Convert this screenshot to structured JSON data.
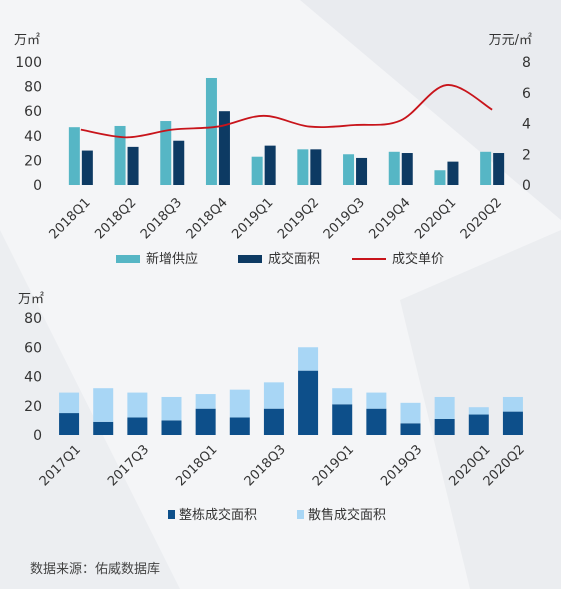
{
  "source": "数据来源：佑威数据库",
  "colors": {
    "supply": "#56b6c5",
    "transaction": "#0d3a63",
    "price": "#c8141b",
    "whole": "#0d4f8a",
    "strata": "#a8d6f5"
  },
  "chart_data": [
    {
      "type": "bar",
      "ylabel_left": "万㎡",
      "ylabel_right": "万元/㎡",
      "ylim": [
        0,
        100
      ],
      "ylim_right": [
        0,
        8
      ],
      "yticks": [
        "0",
        "20",
        "40",
        "60",
        "80",
        "100"
      ],
      "yticks_right": [
        "0",
        "2",
        "4",
        "6",
        "8"
      ],
      "categories": [
        "2018Q1",
        "2018Q2",
        "2018Q3",
        "2018Q4",
        "2019Q1",
        "2019Q2",
        "2019Q3",
        "2019Q4",
        "2020Q1",
        "2020Q2"
      ],
      "series": [
        {
          "name": "新增供应",
          "type": "bar",
          "axis": "left",
          "values": [
            47,
            48,
            52,
            87,
            23,
            29,
            25,
            27,
            12,
            27
          ]
        },
        {
          "name": "成交面积",
          "type": "bar",
          "axis": "left",
          "values": [
            28,
            31,
            36,
            60,
            32,
            29,
            22,
            26,
            19,
            26
          ]
        },
        {
          "name": "成交单价",
          "type": "line",
          "axis": "right",
          "values": [
            3.6,
            3.1,
            3.6,
            3.8,
            4.5,
            3.8,
            3.9,
            4.2,
            6.5,
            4.9
          ]
        }
      ]
    },
    {
      "type": "bar",
      "stacked": true,
      "ylabel": "万㎡",
      "ylim": [
        0,
        80
      ],
      "yticks": [
        "0",
        "20",
        "40",
        "60",
        "80"
      ],
      "categories": [
        "2017Q1",
        "2017Q2",
        "2017Q3",
        "2017Q4",
        "2018Q1",
        "2018Q2",
        "2018Q3",
        "2018Q4",
        "2019Q1",
        "2019Q2",
        "2019Q3",
        "2019Q4",
        "2020Q1",
        "2020Q2"
      ],
      "tick_labels": [
        "2017Q1",
        "",
        "2017Q3",
        "",
        "2018Q1",
        "",
        "2018Q3",
        "",
        "2019Q1",
        "",
        "2019Q3",
        "",
        "2020Q1",
        "2020Q2"
      ],
      "series": [
        {
          "name": "整栋成交面积",
          "values": [
            15,
            9,
            12,
            10,
            18,
            12,
            18,
            44,
            21,
            18,
            8,
            11,
            14,
            16
          ]
        },
        {
          "name": "散售成交面积",
          "values": [
            14,
            23,
            17,
            16,
            10,
            19,
            18,
            16,
            11,
            11,
            14,
            15,
            5,
            10
          ]
        }
      ]
    }
  ]
}
